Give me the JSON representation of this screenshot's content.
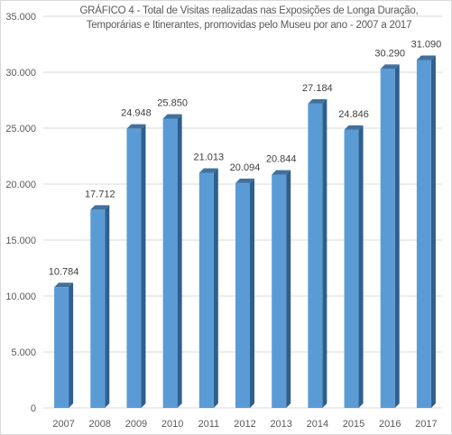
{
  "chart_data": {
    "type": "bar",
    "title_lines": [
      "GRÁFICO 4 - Total de Visitas realizadas nas Exposições de Longa Duração,",
      "Temporárias e Itinerantes, promovidas pelo Museu por ano - 2007 a 2017"
    ],
    "categories": [
      "2007",
      "2008",
      "2009",
      "2010",
      "2011",
      "2012",
      "2013",
      "2014",
      "2015",
      "2016",
      "2017"
    ],
    "values": [
      10784,
      17712,
      24948,
      25850,
      21013,
      20094,
      20844,
      27184,
      24846,
      30290,
      31090
    ],
    "value_labels": [
      "10.784",
      "17.712",
      "24.948",
      "25.850",
      "21.013",
      "20.094",
      "20.844",
      "27.184",
      "24.846",
      "30.290",
      "31.090"
    ],
    "ylim": [
      0,
      35000
    ],
    "ytick_labels": [
      "0",
      "5.000",
      "10.000",
      "15.000",
      "20.000",
      "25.000",
      "30.000",
      "35.000"
    ],
    "grid": true,
    "bar_style": "3d",
    "colors": {
      "bar_front": "#5b9bd5",
      "bar_side": "#2e5f8e",
      "bar_top": "#41719c",
      "grid": "#d9d9d9",
      "text": "#595959"
    }
  }
}
